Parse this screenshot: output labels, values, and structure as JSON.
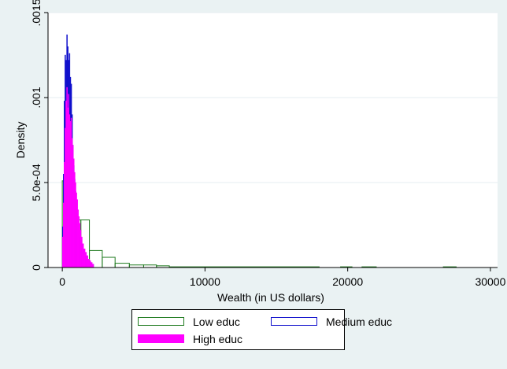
{
  "chart_data": {
    "type": "histogram",
    "xlabel": "Wealth (in US dollars)",
    "ylabel": "Density",
    "xlim": [
      -1000,
      30500
    ],
    "ylim": [
      0,
      0.0015
    ],
    "x_ticks": [
      0,
      10000,
      20000,
      30000
    ],
    "x_tick_labels": [
      "0",
      "10000",
      "20000",
      "30000"
    ],
    "y_ticks": [
      0,
      0.0005,
      0.001,
      0.0015
    ],
    "y_tick_labels": [
      "0",
      "5.0e-04",
      ".001",
      ".0015"
    ],
    "grid": true,
    "legend_position": "bottom",
    "series": [
      {
        "name": "Low educ",
        "color": "#1f7a1f",
        "fill": "none",
        "bins": [
          {
            "x0": 0,
            "x1": 150,
            "density": 0.00051
          },
          {
            "x0": 150,
            "x1": 1300,
            "density": 0.00028
          },
          {
            "x0": 1300,
            "x1": 1900,
            "density": 0.00028
          },
          {
            "x0": 1900,
            "x1": 2800,
            "density": 0.0001
          },
          {
            "x0": 2800,
            "x1": 3700,
            "density": 6e-05
          },
          {
            "x0": 3700,
            "x1": 4700,
            "density": 2.5e-05
          },
          {
            "x0": 4700,
            "x1": 5700,
            "density": 1.5e-05
          },
          {
            "x0": 5700,
            "x1": 6600,
            "density": 1.5e-05
          },
          {
            "x0": 6600,
            "x1": 7500,
            "density": 1e-05
          },
          {
            "x0": 7500,
            "x1": 18000,
            "density": 4e-06
          },
          {
            "x0": 19500,
            "x1": 20300,
            "density": 4e-06
          },
          {
            "x0": 21000,
            "x1": 22000,
            "density": 4e-06
          },
          {
            "x0": 26700,
            "x1": 27600,
            "density": 4e-06
          }
        ]
      },
      {
        "name": "Medium educ",
        "color": "#1010cc",
        "fill": "#1010cc",
        "bins": [
          {
            "x0": 0,
            "x1": 60,
            "density": 0.00024
          },
          {
            "x0": 60,
            "x1": 120,
            "density": 0.00055
          },
          {
            "x0": 120,
            "x1": 180,
            "density": 0.00098
          },
          {
            "x0": 180,
            "x1": 240,
            "density": 0.00125
          },
          {
            "x0": 240,
            "x1": 300,
            "density": 0.00122
          },
          {
            "x0": 300,
            "x1": 360,
            "density": 0.00137
          },
          {
            "x0": 360,
            "x1": 420,
            "density": 0.0013
          },
          {
            "x0": 420,
            "x1": 480,
            "density": 0.00122
          },
          {
            "x0": 480,
            "x1": 540,
            "density": 0.00126
          },
          {
            "x0": 540,
            "x1": 600,
            "density": 0.00112
          },
          {
            "x0": 600,
            "x1": 660,
            "density": 0.00108
          },
          {
            "x0": 660,
            "x1": 720,
            "density": 0.0009
          },
          {
            "x0": 720,
            "x1": 780,
            "density": 0.00072
          },
          {
            "x0": 780,
            "x1": 840,
            "density": 0.0006
          },
          {
            "x0": 840,
            "x1": 900,
            "density": 0.00052
          },
          {
            "x0": 900,
            "x1": 960,
            "density": 0.00045
          },
          {
            "x0": 960,
            "x1": 1020,
            "density": 0.00038
          },
          {
            "x0": 1020,
            "x1": 1080,
            "density": 0.00032
          },
          {
            "x0": 1080,
            "x1": 1140,
            "density": 0.00026
          },
          {
            "x0": 1140,
            "x1": 1200,
            "density": 0.00022
          },
          {
            "x0": 1200,
            "x1": 1300,
            "density": 0.00018
          },
          {
            "x0": 1300,
            "x1": 1400,
            "density": 0.00014
          },
          {
            "x0": 1400,
            "x1": 1500,
            "density": 0.0001
          },
          {
            "x0": 1500,
            "x1": 1650,
            "density": 7e-05
          },
          {
            "x0": 1650,
            "x1": 1800,
            "density": 5e-05
          },
          {
            "x0": 1800,
            "x1": 2000,
            "density": 3e-05
          },
          {
            "x0": 2000,
            "x1": 2200,
            "density": 2e-05
          }
        ]
      },
      {
        "name": "High educ",
        "color": "#ff00ff",
        "fill": "#ff00ff",
        "bins": [
          {
            "x0": 0,
            "x1": 60,
            "density": 0.00018
          },
          {
            "x0": 60,
            "x1": 120,
            "density": 0.00038
          },
          {
            "x0": 120,
            "x1": 180,
            "density": 0.00062
          },
          {
            "x0": 180,
            "x1": 240,
            "density": 0.00082
          },
          {
            "x0": 240,
            "x1": 300,
            "density": 0.00098
          },
          {
            "x0": 300,
            "x1": 360,
            "density": 0.00106
          },
          {
            "x0": 360,
            "x1": 420,
            "density": 0.00094
          },
          {
            "x0": 420,
            "x1": 480,
            "density": 0.00102
          },
          {
            "x0": 480,
            "x1": 540,
            "density": 0.0009
          },
          {
            "x0": 540,
            "x1": 600,
            "density": 0.00086
          },
          {
            "x0": 600,
            "x1": 660,
            "density": 0.00088
          },
          {
            "x0": 660,
            "x1": 720,
            "density": 0.00076
          },
          {
            "x0": 720,
            "x1": 780,
            "density": 0.00072
          },
          {
            "x0": 780,
            "x1": 840,
            "density": 0.00064
          },
          {
            "x0": 840,
            "x1": 900,
            "density": 0.00056
          },
          {
            "x0": 900,
            "x1": 960,
            "density": 0.0005
          },
          {
            "x0": 960,
            "x1": 1020,
            "density": 0.00044
          },
          {
            "x0": 1020,
            "x1": 1080,
            "density": 0.0004
          },
          {
            "x0": 1080,
            "x1": 1140,
            "density": 0.00034
          },
          {
            "x0": 1140,
            "x1": 1200,
            "density": 0.0003
          },
          {
            "x0": 1200,
            "x1": 1260,
            "density": 0.00026
          },
          {
            "x0": 1260,
            "x1": 1320,
            "density": 0.00022
          },
          {
            "x0": 1320,
            "x1": 1400,
            "density": 0.00018
          },
          {
            "x0": 1400,
            "x1": 1500,
            "density": 0.00014
          },
          {
            "x0": 1500,
            "x1": 1600,
            "density": 0.00011
          },
          {
            "x0": 1600,
            "x1": 1700,
            "density": 9e-05
          },
          {
            "x0": 1700,
            "x1": 1800,
            "density": 7e-05
          },
          {
            "x0": 1800,
            "x1": 1900,
            "density": 5e-05
          },
          {
            "x0": 1900,
            "x1": 2000,
            "density": 4e-05
          },
          {
            "x0": 2000,
            "x1": 2100,
            "density": 3e-05
          },
          {
            "x0": 2100,
            "x1": 2200,
            "density": 2e-05
          }
        ]
      }
    ]
  }
}
